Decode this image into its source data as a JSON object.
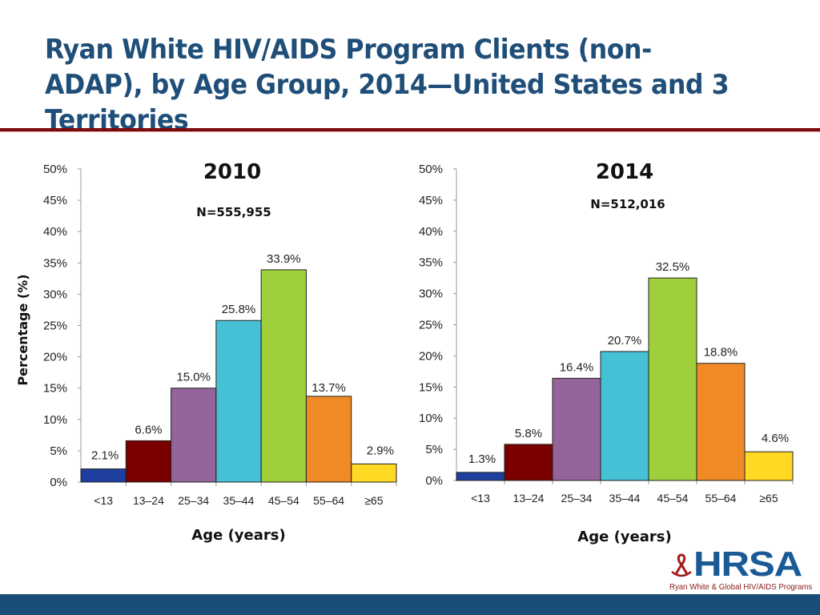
{
  "title": "Ryan White HIV/AIDS Program Clients (non-ADAP), by Age Group, 2014—United States and 3 Territories",
  "logo": {
    "text": "HRSA",
    "subtitle": "Ryan White & Global HIV/AIDS Programs"
  },
  "colors": {
    "title": "#1f4e79",
    "rule": "#7b0a0a",
    "footer": "#1a4d78"
  },
  "chart_data": [
    {
      "type": "bar",
      "title": "2010",
      "subtitle": "N=555,955",
      "xlabel": "Age (years)",
      "ylabel": "Percentage (%)",
      "ylim": [
        0,
        50
      ],
      "yticks": [
        "0%",
        "5%",
        "10%",
        "15%",
        "20%",
        "25%",
        "30%",
        "35%",
        "40%",
        "45%",
        "50%"
      ],
      "categories": [
        "<13",
        "13–24",
        "25–34",
        "35–44",
        "45–54",
        "55–64",
        "≥65"
      ],
      "values": [
        2.1,
        6.6,
        15.0,
        25.8,
        33.9,
        13.7,
        2.9
      ],
      "labels": [
        "2.1%",
        "6.6%",
        "15.0%",
        "25.8%",
        "33.9%",
        "13.7%",
        "2.9%"
      ],
      "colors": [
        "#1f3fa0",
        "#7a0000",
        "#94649a",
        "#45c0d4",
        "#9fcf3a",
        "#f08a24",
        "#ffd923"
      ]
    },
    {
      "type": "bar",
      "title": "2014",
      "subtitle": "N=512,016",
      "xlabel": "Age (years)",
      "ylim": [
        0,
        50
      ],
      "yticks": [
        "0%",
        "5%",
        "10%",
        "15%",
        "20%",
        "25%",
        "30%",
        "35%",
        "40%",
        "45%",
        "50%"
      ],
      "categories": [
        "<13",
        "13–24",
        "25–34",
        "35–44",
        "45–54",
        "55–64",
        "≥65"
      ],
      "values": [
        1.3,
        5.8,
        16.4,
        20.7,
        32.5,
        18.8,
        4.6
      ],
      "labels": [
        "1.3%",
        "5.8%",
        "16.4%",
        "20.7%",
        "32.5%",
        "18.8%",
        "4.6%"
      ],
      "colors": [
        "#1f3fa0",
        "#7a0000",
        "#94649a",
        "#45c0d4",
        "#9fcf3a",
        "#f08a24",
        "#ffd923"
      ]
    }
  ]
}
